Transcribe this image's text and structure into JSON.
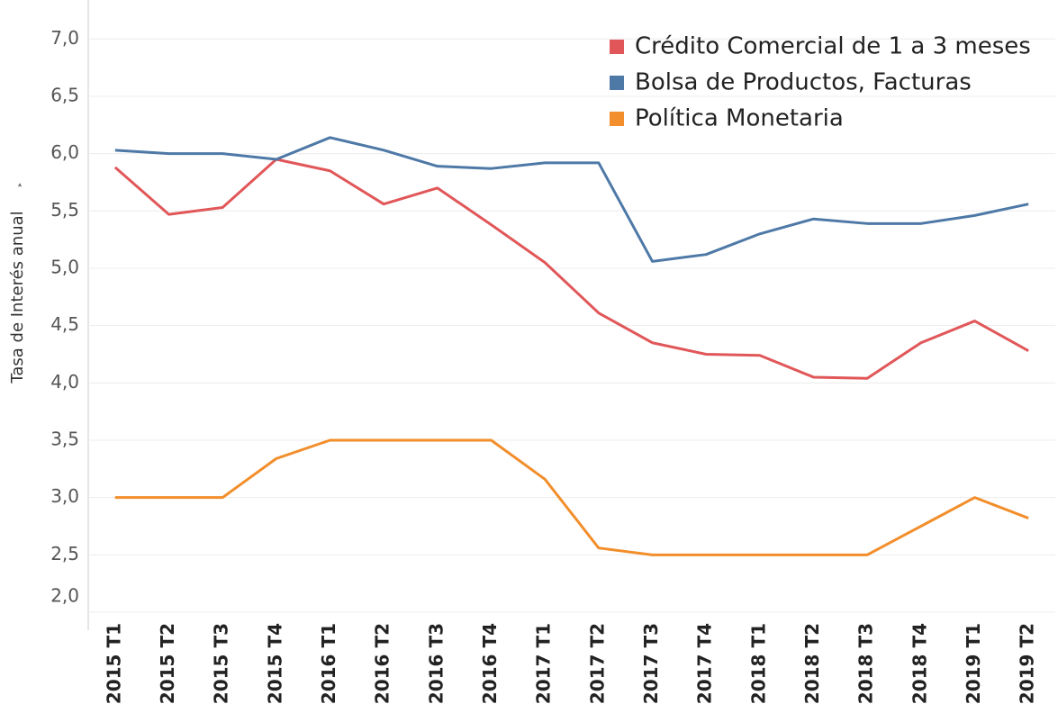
{
  "chart_data": {
    "type": "line",
    "y_label": "Tasa de Interés anual",
    "categories": [
      "2015 T1",
      "2015 T2",
      "2015 T3",
      "2015 T4",
      "2016 T1",
      "2016 T2",
      "2016 T3",
      "2016 T4",
      "2017 T1",
      "2017 T2",
      "2017 T3",
      "2017 T4",
      "2018 T1",
      "2018 T2",
      "2018 T3",
      "2018 T4",
      "2019 T1",
      "2019 T2"
    ],
    "series": [
      {
        "name": "Crédito Comercial de 1 a 3 meses",
        "color": "#e15759",
        "values": [
          5.88,
          5.47,
          5.53,
          5.95,
          5.85,
          5.56,
          5.7,
          5.38,
          5.05,
          4.61,
          4.35,
          4.25,
          4.24,
          4.05,
          4.04,
          4.35,
          4.54,
          4.28
        ]
      },
      {
        "name": "Bolsa de Productos, Facturas",
        "color": "#4e79a7",
        "values": [
          6.03,
          6.0,
          6.0,
          5.95,
          6.14,
          6.03,
          5.89,
          5.87,
          5.92,
          5.92,
          5.06,
          5.12,
          5.3,
          5.43,
          5.39,
          5.39,
          5.46,
          5.56
        ]
      },
      {
        "name": "Política Monetaria",
        "color": "#f28e2b",
        "values": [
          3.0,
          3.0,
          3.0,
          3.34,
          3.5,
          3.5,
          3.5,
          3.5,
          3.16,
          2.56,
          2.5,
          2.5,
          2.5,
          2.5,
          2.5,
          2.75,
          3.0,
          2.82
        ]
      }
    ],
    "ylim": [
      2.0,
      7.34
    ],
    "yticks": [
      {
        "value": 2.0,
        "label": "2,0"
      },
      {
        "value": 2.5,
        "label": "2,5"
      },
      {
        "value": 3.0,
        "label": "3,0"
      },
      {
        "value": 3.5,
        "label": "3,5"
      },
      {
        "value": 4.0,
        "label": "4,0"
      },
      {
        "value": 4.5,
        "label": "4,5"
      },
      {
        "value": 5.0,
        "label": "5,0"
      },
      {
        "value": 5.5,
        "label": "5,5"
      },
      {
        "value": 6.0,
        "label": "6,0"
      },
      {
        "value": 6.5,
        "label": "6,5"
      },
      {
        "value": 7.0,
        "label": "7,0"
      }
    ],
    "grid": true,
    "legend": "top-right"
  }
}
